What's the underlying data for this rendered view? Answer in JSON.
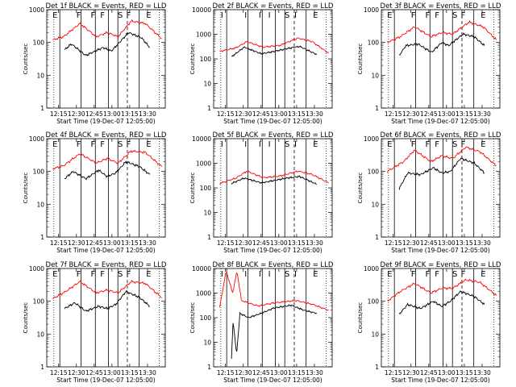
{
  "figure": {
    "xlabel": "Start Time (19-Dec-07 12:05:00)",
    "ylabel": "Counts/sec",
    "y_ticks": [
      1,
      10,
      100,
      1000
    ],
    "y_ticks_big": [
      1,
      10,
      100,
      1000,
      10000
    ],
    "x_ticks": [
      "12:15",
      "12:30",
      "12:45",
      "13:00",
      "13:15",
      "13:30"
    ],
    "colors": {
      "events": "#000000",
      "lld": "#ff0000",
      "frame": "#000000"
    }
  },
  "chart_data": [
    {
      "type": "line",
      "title": "Det 1f BLACK = Events, RED = LLD",
      "scale": "log",
      "ylim": [
        1,
        1000
      ],
      "markers": [
        "E",
        "F",
        "F",
        "F",
        "S",
        "F",
        "E"
      ],
      "series": [
        {
          "name": "Events",
          "x_range": [
            "12:20",
            "13:32"
          ],
          "knots": [
            [
              0,
              60
            ],
            [
              0.08,
              90
            ],
            [
              0.25,
              40
            ],
            [
              0.45,
              70
            ],
            [
              0.55,
              55
            ],
            [
              0.75,
              200
            ],
            [
              0.9,
              140
            ],
            [
              1,
              70
            ]
          ]
        },
        {
          "name": "LLD",
          "x_range": [
            "12:10",
            "13:42"
          ],
          "knots": [
            [
              0,
              120
            ],
            [
              0.1,
              150
            ],
            [
              0.25,
              380
            ],
            [
              0.4,
              150
            ],
            [
              0.5,
              200
            ],
            [
              0.6,
              150
            ],
            [
              0.72,
              450
            ],
            [
              0.85,
              380
            ],
            [
              1,
              130
            ]
          ]
        }
      ]
    },
    {
      "type": "line",
      "title": "Det 2f BLACK = Events, RED = LLD",
      "scale": "log",
      "ylim": [
        1,
        10000
      ],
      "markers": [
        "I",
        "I",
        "I",
        "I",
        "S",
        "I",
        "E"
      ],
      "series": [
        {
          "name": "Events",
          "x_range": [
            "12:20",
            "13:32"
          ],
          "knots": [
            [
              0,
              120
            ],
            [
              0.15,
              300
            ],
            [
              0.35,
              160
            ],
            [
              0.5,
              200
            ],
            [
              0.65,
              260
            ],
            [
              0.8,
              320
            ],
            [
              1,
              150
            ]
          ]
        },
        {
          "name": "LLD",
          "x_range": [
            "12:10",
            "13:42"
          ],
          "knots": [
            [
              0,
              200
            ],
            [
              0.15,
              280
            ],
            [
              0.25,
              500
            ],
            [
              0.4,
              300
            ],
            [
              0.55,
              350
            ],
            [
              0.72,
              700
            ],
            [
              0.85,
              500
            ],
            [
              1,
              170
            ]
          ]
        }
      ]
    },
    {
      "type": "line",
      "title": "Det 3f BLACK = Events, RED = LLD",
      "scale": "log",
      "ylim": [
        1,
        1000
      ],
      "markers": [
        "E",
        "F",
        "F",
        "F",
        "S",
        "F",
        "E"
      ],
      "series": [
        {
          "name": "Events",
          "x_range": [
            "12:20",
            "13:32"
          ],
          "knots": [
            [
              0,
              40
            ],
            [
              0.08,
              80
            ],
            [
              0.22,
              90
            ],
            [
              0.38,
              50
            ],
            [
              0.5,
              100
            ],
            [
              0.58,
              80
            ],
            [
              0.75,
              180
            ],
            [
              0.88,
              150
            ],
            [
              1,
              80
            ]
          ]
        },
        {
          "name": "LLD",
          "x_range": [
            "12:10",
            "13:42"
          ],
          "knots": [
            [
              0,
              100
            ],
            [
              0.12,
              150
            ],
            [
              0.25,
              300
            ],
            [
              0.4,
              150
            ],
            [
              0.5,
              200
            ],
            [
              0.6,
              180
            ],
            [
              0.75,
              420
            ],
            [
              0.88,
              300
            ],
            [
              1,
              120
            ]
          ]
        }
      ]
    },
    {
      "type": "line",
      "title": "Det 4f BLACK = Events, RED = LLD",
      "scale": "log",
      "ylim": [
        1,
        1000
      ],
      "markers": [
        "E",
        "F",
        "F",
        "F",
        "S",
        "F",
        "E"
      ],
      "series": [
        {
          "name": "Events",
          "x_range": [
            "12:20",
            "13:32"
          ],
          "knots": [
            [
              0,
              60
            ],
            [
              0.1,
              100
            ],
            [
              0.25,
              60
            ],
            [
              0.4,
              110
            ],
            [
              0.5,
              70
            ],
            [
              0.6,
              90
            ],
            [
              0.72,
              200
            ],
            [
              0.88,
              140
            ],
            [
              1,
              80
            ]
          ]
        },
        {
          "name": "LLD",
          "x_range": [
            "12:10",
            "13:42"
          ],
          "knots": [
            [
              0,
              120
            ],
            [
              0.1,
              150
            ],
            [
              0.25,
              350
            ],
            [
              0.4,
              180
            ],
            [
              0.5,
              250
            ],
            [
              0.6,
              180
            ],
            [
              0.72,
              420
            ],
            [
              0.85,
              380
            ],
            [
              1,
              140
            ]
          ]
        }
      ]
    },
    {
      "type": "line",
      "title": "Det 5f BLACK = Events, RED = LLD",
      "scale": "log",
      "ylim": [
        1,
        10000
      ],
      "markers": [
        "I",
        "I",
        "I",
        "I",
        "S",
        "I",
        "E"
      ],
      "series": [
        {
          "name": "Events",
          "x_range": [
            "12:20",
            "13:32"
          ],
          "knots": [
            [
              0,
              150
            ],
            [
              0.15,
              250
            ],
            [
              0.35,
              160
            ],
            [
              0.5,
              200
            ],
            [
              0.65,
              250
            ],
            [
              0.8,
              290
            ],
            [
              1,
              140
            ]
          ]
        },
        {
          "name": "LLD",
          "x_range": [
            "12:10",
            "13:42"
          ],
          "knots": [
            [
              0,
              150
            ],
            [
              0.15,
              250
            ],
            [
              0.25,
              480
            ],
            [
              0.4,
              260
            ],
            [
              0.55,
              300
            ],
            [
              0.72,
              480
            ],
            [
              0.85,
              350
            ],
            [
              1,
              160
            ]
          ]
        }
      ]
    },
    {
      "type": "line",
      "title": "Det 6f BLACK = Events, RED = LLD",
      "scale": "log",
      "ylim": [
        1,
        1000
      ],
      "markers": [
        "E",
        "F",
        "F",
        "F",
        "S",
        "F",
        "E"
      ],
      "series": [
        {
          "name": "Events",
          "x_range": [
            "12:20",
            "13:32"
          ],
          "knots": [
            [
              0,
              30
            ],
            [
              0.1,
              90
            ],
            [
              0.25,
              80
            ],
            [
              0.4,
              130
            ],
            [
              0.5,
              90
            ],
            [
              0.6,
              100
            ],
            [
              0.72,
              250
            ],
            [
              0.88,
              180
            ],
            [
              1,
              90
            ]
          ]
        },
        {
          "name": "LLD",
          "x_range": [
            "12:10",
            "13:42"
          ],
          "knots": [
            [
              0,
              100
            ],
            [
              0.15,
              200
            ],
            [
              0.25,
              450
            ],
            [
              0.4,
              200
            ],
            [
              0.5,
              300
            ],
            [
              0.6,
              250
            ],
            [
              0.72,
              550
            ],
            [
              0.85,
              400
            ],
            [
              1,
              150
            ]
          ]
        }
      ]
    },
    {
      "type": "line",
      "title": "Det 7f BLACK = Events, RED = LLD",
      "scale": "log",
      "ylim": [
        1,
        1000
      ],
      "markers": [
        "E",
        "F",
        "F",
        "F",
        "S",
        "F",
        "E"
      ],
      "series": [
        {
          "name": "Events",
          "x_range": [
            "12:20",
            "13:32"
          ],
          "knots": [
            [
              0,
              60
            ],
            [
              0.12,
              90
            ],
            [
              0.25,
              50
            ],
            [
              0.4,
              70
            ],
            [
              0.5,
              60
            ],
            [
              0.6,
              80
            ],
            [
              0.72,
              200
            ],
            [
              0.88,
              130
            ],
            [
              1,
              70
            ]
          ]
        },
        {
          "name": "LLD",
          "x_range": [
            "12:10",
            "13:42"
          ],
          "knots": [
            [
              0,
              120
            ],
            [
              0.12,
              200
            ],
            [
              0.25,
              400
            ],
            [
              0.4,
              180
            ],
            [
              0.5,
              220
            ],
            [
              0.6,
              180
            ],
            [
              0.72,
              400
            ],
            [
              0.85,
              350
            ],
            [
              1,
              130
            ]
          ]
        }
      ]
    },
    {
      "type": "line",
      "title": "Det 8f BLACK = Events, RED = LLD",
      "scale": "log",
      "ylim": [
        1,
        10000
      ],
      "markers": [
        "I",
        "I",
        "I",
        "I",
        "S",
        "I",
        "E"
      ],
      "series": [
        {
          "name": "Events",
          "x_range": [
            "12:20",
            "13:32"
          ],
          "knots": [
            [
              0,
              2
            ],
            [
              0.02,
              80
            ],
            [
              0.06,
              3
            ],
            [
              0.1,
              150
            ],
            [
              0.2,
              100
            ],
            [
              0.35,
              150
            ],
            [
              0.5,
              250
            ],
            [
              0.7,
              320
            ],
            [
              0.85,
              200
            ],
            [
              1,
              150
            ]
          ]
        },
        {
          "name": "LLD",
          "x_range": [
            "12:10",
            "13:42"
          ],
          "knots": [
            [
              0,
              250
            ],
            [
              0.06,
              8000
            ],
            [
              0.12,
              1000
            ],
            [
              0.16,
              8000
            ],
            [
              0.2,
              500
            ],
            [
              0.35,
              300
            ],
            [
              0.5,
              400
            ],
            [
              0.7,
              500
            ],
            [
              0.85,
              350
            ],
            [
              1,
              200
            ]
          ]
        }
      ]
    },
    {
      "type": "line",
      "title": "Det 9f BLACK = Events, RED = LLD",
      "scale": "log",
      "ylim": [
        1,
        1000
      ],
      "markers": [
        "E",
        "F",
        "F",
        "F",
        "S",
        "F",
        "E"
      ],
      "series": [
        {
          "name": "Events",
          "x_range": [
            "12:20",
            "13:32"
          ],
          "knots": [
            [
              0,
              40
            ],
            [
              0.1,
              80
            ],
            [
              0.25,
              60
            ],
            [
              0.4,
              100
            ],
            [
              0.5,
              70
            ],
            [
              0.6,
              100
            ],
            [
              0.72,
              200
            ],
            [
              0.88,
              140
            ],
            [
              1,
              80
            ]
          ]
        },
        {
          "name": "LLD",
          "x_range": [
            "12:10",
            "13:42"
          ],
          "knots": [
            [
              0,
              100
            ],
            [
              0.12,
              200
            ],
            [
              0.25,
              350
            ],
            [
              0.4,
              180
            ],
            [
              0.5,
              250
            ],
            [
              0.6,
              250
            ],
            [
              0.72,
              450
            ],
            [
              0.85,
              380
            ],
            [
              1,
              150
            ]
          ]
        }
      ]
    }
  ]
}
